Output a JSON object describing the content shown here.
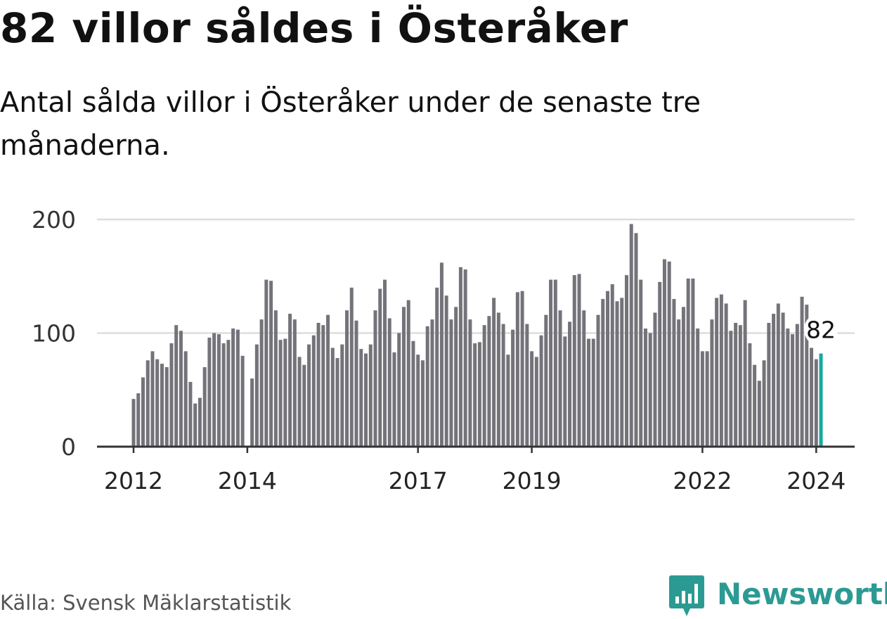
{
  "title": "82 villor såldes i Österåker",
  "subtitle": "Antal sålda villor i Österåker under de senaste tre månaderna.",
  "source": "Källa: Svensk Mäklarstatistik",
  "brand": {
    "name": "Newsworthy",
    "icon": "bar-chart-speech-bubble-icon"
  },
  "colors": {
    "bar": "#74737a",
    "highlight": "#15a99e",
    "grid": "#dddddd",
    "axis": "#333333",
    "brand": "#2b9a93"
  },
  "chart_data": {
    "type": "bar",
    "title": "82 villor såldes i Österåker",
    "ylabel": "",
    "xlabel": "",
    "ylim": [
      0,
      200
    ],
    "yticks": [
      "0",
      "100",
      "200"
    ],
    "xticks": [
      {
        "label": "2012",
        "index": 0
      },
      {
        "label": "2014",
        "index": 24
      },
      {
        "label": "2017",
        "index": 60
      },
      {
        "label": "2019",
        "index": 84
      },
      {
        "label": "2022",
        "index": 120
      },
      {
        "label": "2024",
        "index": 144
      }
    ],
    "highlight": {
      "index": 145,
      "value": 82,
      "label": "82"
    },
    "values": [
      42,
      47,
      61,
      76,
      84,
      77,
      73,
      70,
      91,
      107,
      102,
      84,
      57,
      38,
      43,
      70,
      96,
      100,
      99,
      91,
      94,
      104,
      103,
      80,
      0,
      60,
      90,
      112,
      147,
      146,
      120,
      94,
      95,
      117,
      112,
      79,
      72,
      90,
      98,
      109,
      107,
      116,
      87,
      78,
      90,
      120,
      140,
      111,
      86,
      82,
      90,
      120,
      139,
      147,
      113,
      83,
      100,
      123,
      129,
      93,
      81,
      76,
      106,
      112,
      140,
      162,
      133,
      112,
      123,
      158,
      156,
      112,
      91,
      92,
      107,
      115,
      131,
      118,
      108,
      81,
      103,
      136,
      137,
      108,
      84,
      79,
      98,
      116,
      147,
      147,
      120,
      97,
      110,
      151,
      152,
      120,
      95,
      95,
      116,
      130,
      137,
      143,
      128,
      131,
      151,
      196,
      188,
      147,
      104,
      100,
      118,
      145,
      165,
      163,
      130,
      112,
      123,
      148,
      148,
      104,
      84,
      84,
      112,
      131,
      134,
      126,
      102,
      109,
      107,
      129,
      91,
      72,
      58,
      76,
      109,
      117,
      126,
      118,
      104,
      99,
      108,
      132,
      125,
      87,
      77,
      82
    ]
  }
}
